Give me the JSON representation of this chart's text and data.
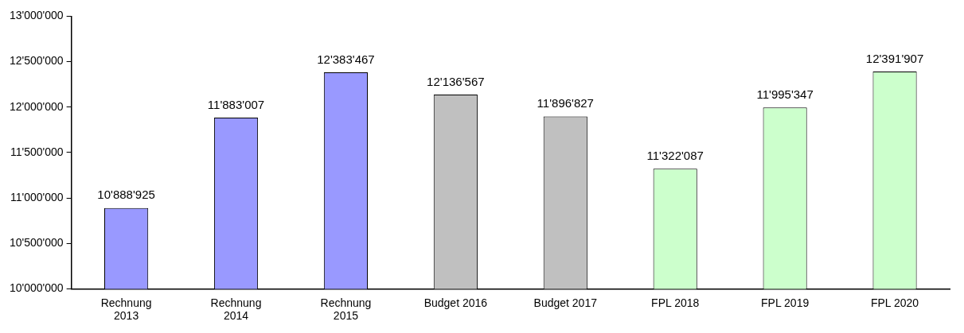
{
  "chart_data": {
    "type": "bar",
    "categories": [
      "Rechnung 2013",
      "Rechnung 2014",
      "Rechnung 2015",
      "Budget 2016",
      "Budget 2017",
      "FPL 2018",
      "FPL 2019",
      "FPL 2020"
    ],
    "values": [
      10888925,
      11883007,
      12383467,
      12136567,
      11896827,
      11322087,
      11995347,
      12391907
    ],
    "colors": [
      "#9999ff",
      "#9999ff",
      "#9999ff",
      "#c0c0c0",
      "#c0c0c0",
      "#ccffcc",
      "#ccffcc",
      "#ccffcc"
    ],
    "value_labels": [
      "10'888'925",
      "11'883'007",
      "12'383'467",
      "12'136'567",
      "11'896'827",
      "11'322'087",
      "11'995'347",
      "12'391'907"
    ],
    "ylim": [
      10000000,
      13000000
    ],
    "yticks": [
      {
        "value": 10000000,
        "label": "10'000'000"
      },
      {
        "value": 10500000,
        "label": "10'500'000"
      },
      {
        "value": 11000000,
        "label": "11'000'000"
      },
      {
        "value": 11500000,
        "label": "11'500'000"
      },
      {
        "value": 12000000,
        "label": "12'000'000"
      },
      {
        "value": 12500000,
        "label": "12'500'000"
      },
      {
        "value": 13000000,
        "label": "13'000'000"
      }
    ],
    "grid": false,
    "legend": false
  }
}
